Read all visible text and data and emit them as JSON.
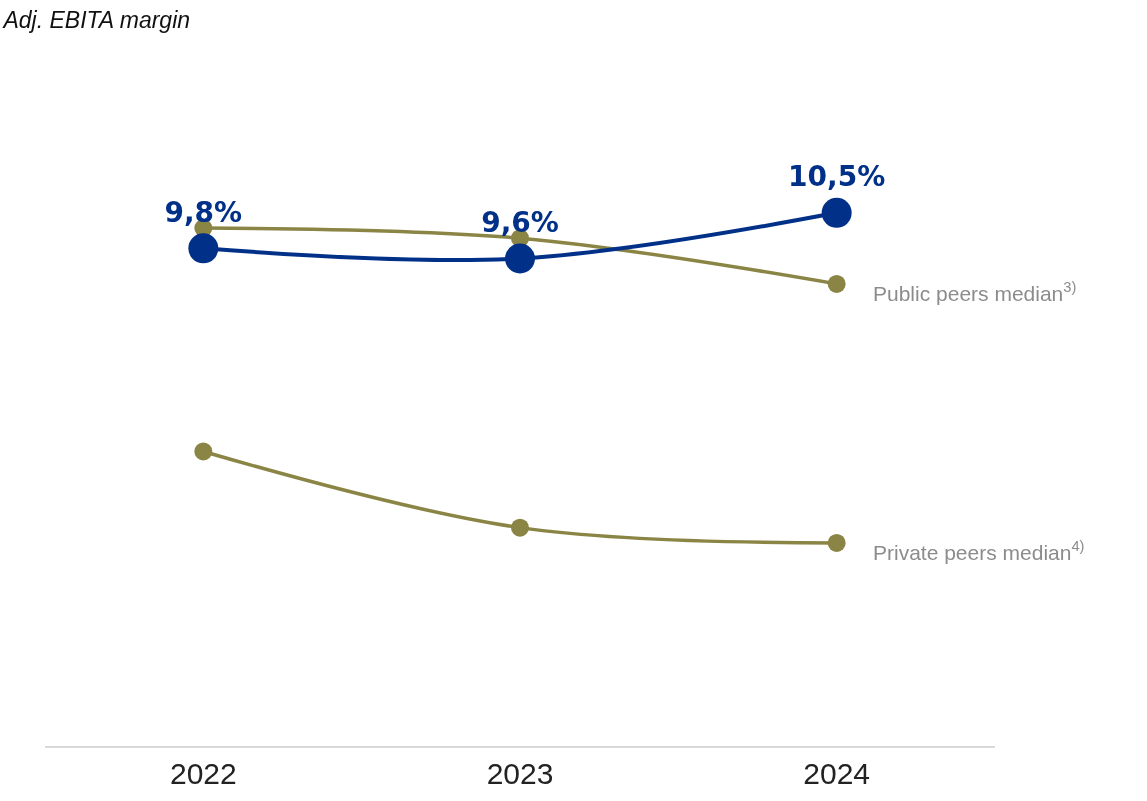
{
  "chart_data": {
    "type": "line",
    "title": "Adj. EBITA margin",
    "categories": [
      "2022",
      "2023",
      "2024"
    ],
    "series": [
      {
        "color": "#8a8545",
        "values": [
          10.2,
          10.0,
          9.1
        ],
        "name": "Public peers median$^{3)}$"
      },
      {
        "color": "#8a8545",
        "values": [
          5.8,
          4.3,
          4.0
        ],
        "name": "Private peers median$^{4)}$"
      },
      {
        "color": "#003087",
        "values": [
          9.8,
          9.6,
          10.5
        ],
        "value_labels": [
          "9,8%",
          "9,6%",
          "10,5%"
        ]
      }
    ],
    "tick_labels": "x",
    "legend": false,
    "marker": "circle",
    "line_style": "solid"
  }
}
